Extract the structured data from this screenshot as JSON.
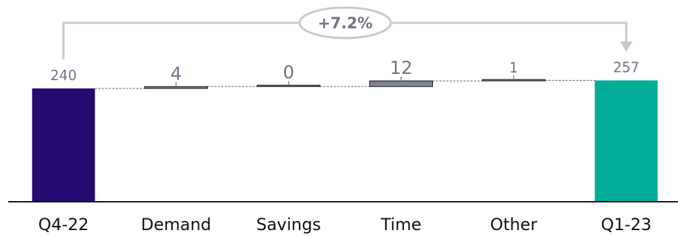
{
  "chart_data": {
    "type": "waterfall",
    "categories": [
      "Q4-22",
      "Demand",
      "Savings",
      "Time",
      "Other",
      "Q1-23"
    ],
    "values": [
      240,
      4,
      0,
      12,
      1,
      257
    ],
    "value_labels": [
      "240",
      "4",
      "0",
      "12",
      "1",
      "257"
    ],
    "kinds": [
      "total",
      "delta",
      "delta",
      "delta",
      "delta",
      "total"
    ],
    "change_label": "+7.2%",
    "colors": {
      "start_total": "#250a72",
      "end_total": "#00ac98",
      "delta_bar": "#7b8396",
      "value_text": "#6e7585",
      "connector": "#c8c8c8"
    }
  }
}
